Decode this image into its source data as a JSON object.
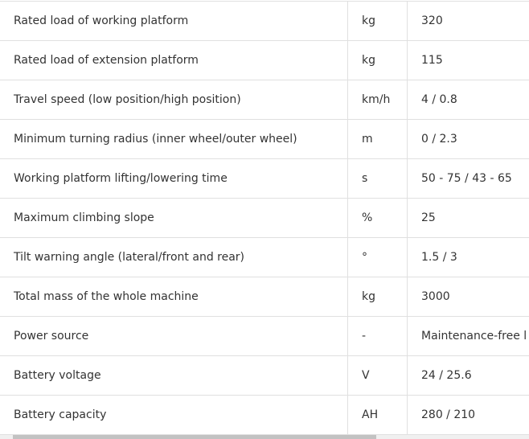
{
  "rows": [
    {
      "param": "Rated load of working platform",
      "unit": "kg",
      "value": "320"
    },
    {
      "param": "Rated load of extension platform",
      "unit": "kg",
      "value": "115"
    },
    {
      "param": "Travel speed (low position/high position)",
      "unit": "km/h",
      "value": "4 / 0.8"
    },
    {
      "param": "Minimum turning radius (inner wheel/outer wheel)",
      "unit": "m",
      "value": "0 / 2.3"
    },
    {
      "param": "Working platform lifting/lowering time",
      "unit": "s",
      "value": "50 - 75 / 43 - 65"
    },
    {
      "param": "Maximum climbing slope",
      "unit": "%",
      "value": "25"
    },
    {
      "param": "Tilt warning angle (lateral/front and rear)",
      "unit": "°",
      "value": "1.5 / 3"
    },
    {
      "param": "Total mass of the whole machine",
      "unit": "kg",
      "value": "3000"
    },
    {
      "param": "Power source",
      "unit": "-",
      "value": "Maintenance-free l"
    },
    {
      "param": "Battery voltage",
      "unit": "V",
      "value": "24 / 25.6"
    },
    {
      "param": "Battery capacity",
      "unit": "AH",
      "value": "280 / 210"
    }
  ]
}
